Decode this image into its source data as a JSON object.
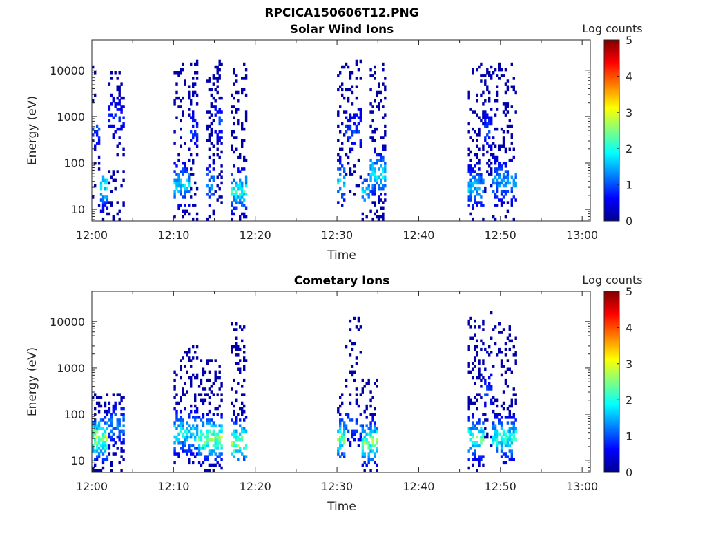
{
  "figure_title": "RPCICA150606T12.PNG",
  "colors": {
    "axis": "#262626",
    "background": "#ffffff",
    "colormap": [
      "#00008f",
      "#0000ff",
      "#0080ff",
      "#00ffff",
      "#80ff80",
      "#ffff00",
      "#ff8000",
      "#ff0000",
      "#800000"
    ]
  },
  "chart_data": [
    {
      "type": "heatmap",
      "title": "Solar Wind Ions",
      "xlabel": "Time",
      "ylabel": "Energy (eV)",
      "yscale": "log",
      "ylim": [
        5.6,
        45000
      ],
      "xlim": [
        "12:00",
        "13:01"
      ],
      "x_ticks": [
        "12:00",
        "12:10",
        "12:20",
        "12:30",
        "12:40",
        "12:50",
        "13:00"
      ],
      "y_ticks": [
        {
          "value": 10,
          "label": "10"
        },
        {
          "value": 100,
          "label": "100"
        },
        {
          "value": 1000,
          "label": "1000"
        },
        {
          "value": 10000,
          "label": "10000"
        }
      ],
      "colorbar": {
        "label": "Log counts",
        "min": 0,
        "max": 5,
        "ticks": [
          "0",
          "1",
          "2",
          "3",
          "4",
          "5"
        ]
      },
      "grid": false,
      "bursts": [
        {
          "start": "12:00",
          "end": "12:01",
          "low_ev": 6,
          "high_ev": 12000,
          "core_ev": 500,
          "peak_log": 1.0,
          "density": 0.25
        },
        {
          "start": "12:01",
          "end": "12:02",
          "low_ev": 6,
          "high_ev": 60,
          "core_ev": 30,
          "peak_log": 2.2,
          "density": 0.75
        },
        {
          "start": "12:02",
          "end": "12:04",
          "low_ev": 6,
          "high_ev": 14000,
          "core_ev": 1000,
          "peak_log": 0.8,
          "density": 0.45
        },
        {
          "start": "12:10",
          "end": "12:12",
          "low_ev": 6,
          "high_ev": 15000,
          "core_ev": 35,
          "peak_log": 2.0,
          "density": 0.5
        },
        {
          "start": "12:12",
          "end": "12:13",
          "low_ev": 6,
          "high_ev": 16000,
          "core_ev": 500,
          "peak_log": 1.0,
          "density": 0.5
        },
        {
          "start": "12:14",
          "end": "12:15",
          "low_ev": 6,
          "high_ev": 9000,
          "core_ev": 35,
          "peak_log": 1.6,
          "density": 0.55
        },
        {
          "start": "12:15",
          "end": "12:16",
          "low_ev": 10,
          "high_ev": 16000,
          "core_ev": 800,
          "peak_log": 1.0,
          "density": 0.55
        },
        {
          "start": "12:17",
          "end": "12:19",
          "low_ev": 6,
          "high_ev": 14000,
          "core_ev": 25,
          "peak_log": 2.3,
          "density": 0.6
        },
        {
          "start": "12:30",
          "end": "12:31",
          "low_ev": 10,
          "high_ev": 12000,
          "core_ev": 40,
          "peak_log": 2.0,
          "density": 0.55
        },
        {
          "start": "12:31",
          "end": "12:33",
          "low_ev": 20,
          "high_ev": 16000,
          "core_ev": 500,
          "peak_log": 1.0,
          "density": 0.45
        },
        {
          "start": "12:33",
          "end": "12:34",
          "low_ev": 6,
          "high_ev": 60,
          "core_ev": 25,
          "peak_log": 2.0,
          "density": 0.5
        },
        {
          "start": "12:34",
          "end": "12:36",
          "low_ev": 6,
          "high_ev": 14000,
          "core_ev": 60,
          "peak_log": 2.2,
          "density": 0.6
        },
        {
          "start": "12:46",
          "end": "12:48",
          "low_ev": 6,
          "high_ev": 14000,
          "core_ev": 30,
          "peak_log": 1.8,
          "density": 0.6
        },
        {
          "start": "12:48",
          "end": "12:49",
          "low_ev": 20,
          "high_ev": 13000,
          "core_ev": 500,
          "peak_log": 1.0,
          "density": 0.6
        },
        {
          "start": "12:49",
          "end": "12:52",
          "low_ev": 6,
          "high_ev": 14000,
          "core_ev": 40,
          "peak_log": 1.6,
          "density": 0.5
        }
      ]
    },
    {
      "type": "heatmap",
      "title": "Cometary Ions",
      "xlabel": "Time",
      "ylabel": "Energy (eV)",
      "yscale": "log",
      "ylim": [
        5.6,
        45000
      ],
      "xlim": [
        "12:00",
        "13:01"
      ],
      "x_ticks": [
        "12:00",
        "12:10",
        "12:20",
        "12:30",
        "12:40",
        "12:50",
        "13:00"
      ],
      "y_ticks": [
        {
          "value": 10,
          "label": "10"
        },
        {
          "value": 100,
          "label": "100"
        },
        {
          "value": 1000,
          "label": "1000"
        },
        {
          "value": 10000,
          "label": "10000"
        }
      ],
      "colorbar": {
        "label": "Log counts",
        "min": 0,
        "max": 5,
        "ticks": [
          "0",
          "1",
          "2",
          "3",
          "4",
          "5"
        ]
      },
      "grid": false,
      "bursts": [
        {
          "start": "12:00",
          "end": "12:02",
          "low_ev": 6,
          "high_ev": 300,
          "core_ev": 30,
          "peak_log": 3.2,
          "density": 0.75
        },
        {
          "start": "12:02",
          "end": "12:04",
          "low_ev": 6,
          "high_ev": 300,
          "core_ev": 60,
          "peak_log": 1.5,
          "density": 0.5
        },
        {
          "start": "12:10",
          "end": "12:13",
          "low_ev": 8,
          "high_ev": 3000,
          "core_ev": 40,
          "peak_log": 2.2,
          "density": 0.55
        },
        {
          "start": "12:13",
          "end": "12:16",
          "low_ev": 6,
          "high_ev": 1500,
          "core_ev": 30,
          "peak_log": 3.0,
          "density": 0.65
        },
        {
          "start": "12:17",
          "end": "12:19",
          "low_ev": 10,
          "high_ev": 9000,
          "core_ev": 25,
          "peak_log": 3.1,
          "density": 0.6
        },
        {
          "start": "12:30",
          "end": "12:31",
          "low_ev": 10,
          "high_ev": 300,
          "core_ev": 30,
          "peak_log": 2.8,
          "density": 0.6
        },
        {
          "start": "12:31",
          "end": "12:33",
          "low_ev": 20,
          "high_ev": 13000,
          "core_ev": 60,
          "peak_log": 1.2,
          "density": 0.3
        },
        {
          "start": "12:33",
          "end": "12:35",
          "low_ev": 6,
          "high_ev": 600,
          "core_ev": 25,
          "peak_log": 2.9,
          "density": 0.7
        },
        {
          "start": "12:46",
          "end": "12:48",
          "low_ev": 6,
          "high_ev": 12000,
          "core_ev": 30,
          "peak_log": 2.6,
          "density": 0.6
        },
        {
          "start": "12:48",
          "end": "12:49",
          "low_ev": 20,
          "high_ev": 17000,
          "core_ev": 300,
          "peak_log": 1.0,
          "density": 0.3
        },
        {
          "start": "12:49",
          "end": "12:52",
          "low_ev": 8,
          "high_ev": 9000,
          "core_ev": 30,
          "peak_log": 2.4,
          "density": 0.6
        }
      ]
    }
  ]
}
